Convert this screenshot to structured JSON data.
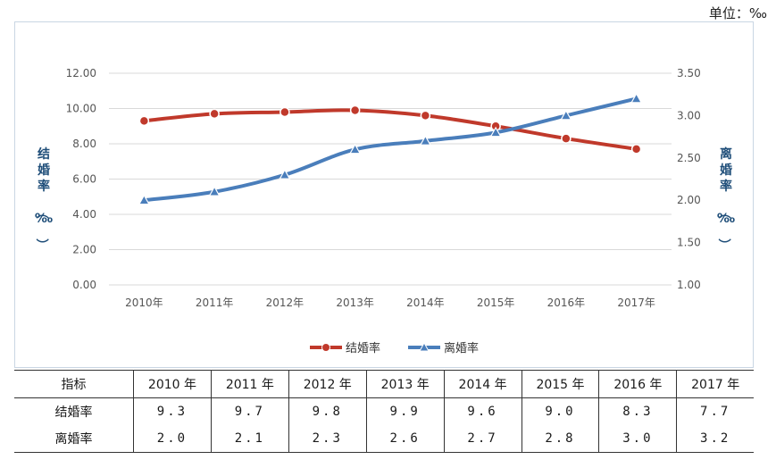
{
  "unit_label": "单位：‰",
  "chart_data": {
    "type": "line",
    "categories": [
      "2010年",
      "2011年",
      "2012年",
      "2013年",
      "2014年",
      "2015年",
      "2016年",
      "2017年"
    ],
    "series": [
      {
        "name": "结婚率",
        "axis": "left",
        "color": "#c0392b",
        "marker": "circle",
        "values": [
          9.3,
          9.7,
          9.8,
          9.9,
          9.6,
          9.0,
          8.3,
          7.7
        ]
      },
      {
        "name": "离婚率",
        "axis": "right",
        "color": "#4a7ebb",
        "marker": "triangle",
        "values": [
          2.0,
          2.1,
          2.3,
          2.6,
          2.7,
          2.8,
          3.0,
          3.2
        ]
      }
    ],
    "y_left": {
      "label": "结婚率（‰）",
      "ticks": [
        "0.00",
        "2.00",
        "4.00",
        "6.00",
        "8.00",
        "10.00",
        "12.00"
      ],
      "min": 0,
      "max": 12
    },
    "y_right": {
      "label": "离婚率（‰）",
      "ticks": [
        "1.00",
        "1.50",
        "2.00",
        "2.50",
        "3.00",
        "3.50"
      ],
      "min": 1,
      "max": 3.5
    },
    "grid": true,
    "legend": "bottom"
  },
  "table": {
    "header_label": "指标",
    "years": [
      "2010 年",
      "2011 年",
      "2012 年",
      "2013 年",
      "2014 年",
      "2015 年",
      "2016 年",
      "2017 年"
    ],
    "rows": [
      {
        "label": "结婚率",
        "values": [
          "9.3",
          "9.7",
          "9.8",
          "9.9",
          "9.6",
          "9.0",
          "8.3",
          "7.7"
        ]
      },
      {
        "label": "离婚率",
        "values": [
          "2.0",
          "2.1",
          "2.3",
          "2.6",
          "2.7",
          "2.8",
          "3.0",
          "3.2"
        ]
      }
    ]
  }
}
